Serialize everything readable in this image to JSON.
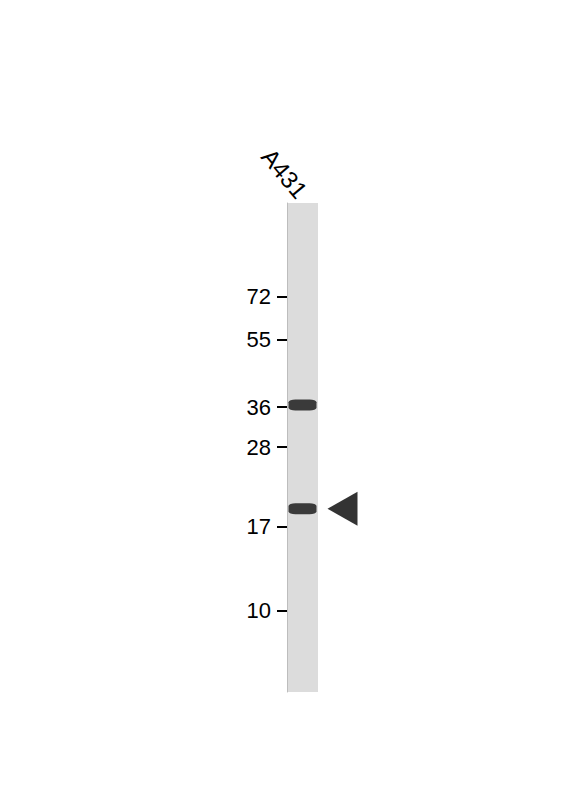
{
  "chart_data": {
    "type": "western_blot",
    "categories": [
      "A431"
    ],
    "bands": [
      [
        36.5,
        19
      ]
    ],
    "arrow": 19,
    "color": "#111111",
    "log": "y",
    "ylim": [
      6,
      130
    ],
    "yticks": [
      10,
      17,
      28,
      36,
      55,
      72
    ],
    "grid": false
  }
}
